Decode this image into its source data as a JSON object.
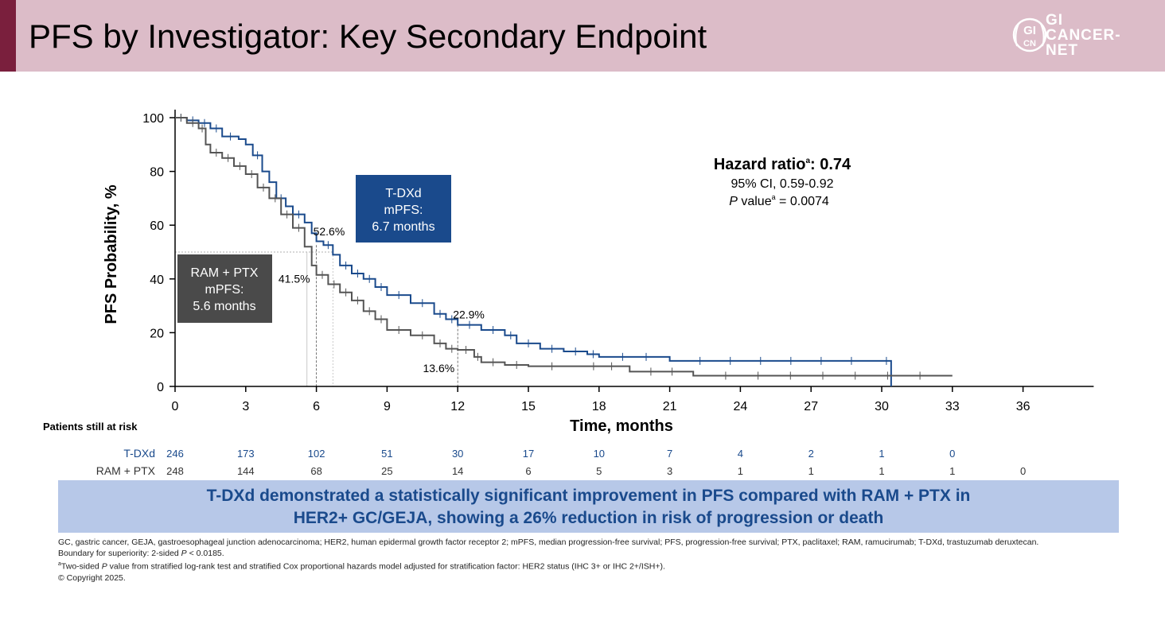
{
  "header": {
    "title": "PFS by Investigator: Key Secondary Endpoint",
    "logo_line1": "GI",
    "logo_line2": "CANCER-",
    "logo_line3": "NET",
    "logo_badge_top": "GI",
    "logo_badge_bottom": "CN"
  },
  "colors": {
    "tdxd": "#1a4a8c",
    "ram": "#555555",
    "banner_bg": "#b7c8e8",
    "header_bg": "#dcbcc8"
  },
  "chart_data": {
    "type": "line",
    "xlabel": "Time, months",
    "ylabel": "PFS Probability, %",
    "xlim": [
      0,
      39
    ],
    "ylim": [
      0,
      100
    ],
    "x_ticks": [
      0,
      3,
      6,
      9,
      12,
      15,
      18,
      21,
      24,
      27,
      30,
      33,
      36
    ],
    "y_ticks": [
      0,
      20,
      40,
      60,
      80,
      100
    ],
    "series": [
      {
        "name": "T-DXd",
        "points": [
          [
            0,
            100
          ],
          [
            0.5,
            99
          ],
          [
            1,
            98
          ],
          [
            1.5,
            96
          ],
          [
            2,
            93
          ],
          [
            2.7,
            92
          ],
          [
            3,
            90
          ],
          [
            3.3,
            86
          ],
          [
            3.7,
            80
          ],
          [
            4,
            76
          ],
          [
            4.3,
            70
          ],
          [
            4.7,
            67
          ],
          [
            5,
            64
          ],
          [
            5.5,
            61
          ],
          [
            5.8,
            57
          ],
          [
            6,
            54
          ],
          [
            6.3,
            52.6
          ],
          [
            6.7,
            49
          ],
          [
            7,
            45
          ],
          [
            7.5,
            42
          ],
          [
            8,
            40
          ],
          [
            8.5,
            37
          ],
          [
            9,
            34
          ],
          [
            10,
            31
          ],
          [
            11,
            27
          ],
          [
            11.5,
            25
          ],
          [
            12,
            22.9
          ],
          [
            13,
            21
          ],
          [
            14,
            19
          ],
          [
            14.5,
            16
          ],
          [
            15.5,
            14
          ],
          [
            16.5,
            13
          ],
          [
            17.5,
            12
          ],
          [
            18,
            11
          ],
          [
            21,
            9.5
          ],
          [
            30,
            9.5
          ],
          [
            30.4,
            9.5
          ],
          [
            30.4,
            0
          ]
        ]
      },
      {
        "name": "RAM + PTX",
        "points": [
          [
            0,
            100
          ],
          [
            0.5,
            98
          ],
          [
            1,
            96
          ],
          [
            1.3,
            90
          ],
          [
            1.5,
            87
          ],
          [
            2,
            85
          ],
          [
            2.5,
            82
          ],
          [
            3,
            79
          ],
          [
            3.5,
            74
          ],
          [
            4,
            70
          ],
          [
            4.5,
            64
          ],
          [
            5,
            59
          ],
          [
            5.5,
            52
          ],
          [
            5.8,
            45
          ],
          [
            6,
            41.5
          ],
          [
            6.5,
            38
          ],
          [
            7,
            35
          ],
          [
            7.5,
            32
          ],
          [
            8,
            28
          ],
          [
            8.5,
            25
          ],
          [
            9,
            21
          ],
          [
            10,
            19
          ],
          [
            11,
            16
          ],
          [
            11.5,
            14
          ],
          [
            12,
            13.6
          ],
          [
            12.7,
            11
          ],
          [
            13,
            9
          ],
          [
            14,
            8
          ],
          [
            15,
            7.5
          ],
          [
            17,
            7.5
          ],
          [
            19.3,
            7.5
          ],
          [
            19.3,
            5.5
          ],
          [
            22,
            5.5
          ],
          [
            22,
            4
          ],
          [
            33,
            4
          ]
        ]
      }
    ],
    "annotations": {
      "tdxd_box": [
        "T-DXd",
        "mPFS:",
        "6.7 months"
      ],
      "ram_box": [
        "RAM + PTX",
        "mPFS:",
        "5.6 months"
      ],
      "labels": [
        {
          "text": "52.6%",
          "x": 6,
          "y": 52.6
        },
        {
          "text": "41.5%",
          "x": 6,
          "y": 41.5
        },
        {
          "text": "22.9%",
          "x": 12,
          "y": 22.9
        },
        {
          "text": "13.6%",
          "x": 12,
          "y": 13.6
        }
      ],
      "hr_line1_a": "Hazard ratio",
      "hr_line1_sup": "a",
      "hr_line1_b": ": 0.74",
      "hr_line2": "95% CI, 0.59-0.92",
      "hr_line3_p": "P",
      "hr_line3_mid": " value",
      "hr_line3_sup": "a",
      "hr_line3_end": " = 0.0074"
    }
  },
  "risk_table": {
    "title": "Patients still at risk",
    "rows": [
      {
        "label": "T-DXd",
        "values": [
          "246",
          "173",
          "102",
          "51",
          "30",
          "17",
          "10",
          "7",
          "4",
          "2",
          "1",
          "0"
        ]
      },
      {
        "label": "RAM + PTX",
        "values": [
          "248",
          "144",
          "68",
          "25",
          "14",
          "6",
          "5",
          "3",
          "1",
          "1",
          "1",
          "1",
          "0"
        ]
      }
    ]
  },
  "banner": {
    "line1": "T-DXd demonstrated a statistically significant improvement in PFS compared with RAM + PTX in",
    "line2": "HER2+ GC/GEJA, showing a 26% reduction in risk of progression or death"
  },
  "footnotes": {
    "abbrev": "GC, gastric cancer, GEJA, gastroesophageal junction adenocarcinoma; HER2, human epidermal growth factor receptor 2; mPFS, median progression-free survival; PFS, progression-free survival; PTX, paclitaxel; RAM, ramucirumab; T-DXd, trastuzumab deruxtecan.",
    "boundary_a": "Boundary for superiority: 2-sided ",
    "boundary_p": "P",
    "boundary_b": " < 0.0185.",
    "note_a_sup": "a",
    "note_a_1": "Two-sided ",
    "note_a_p": "P",
    "note_a_2": " value from stratified log-rank test and stratified Cox proportional hazards model adjusted for stratification factor: HER2 status (IHC 3+ or IHC 2+/ISH+).",
    "copyright": "© Copyright 2025."
  }
}
